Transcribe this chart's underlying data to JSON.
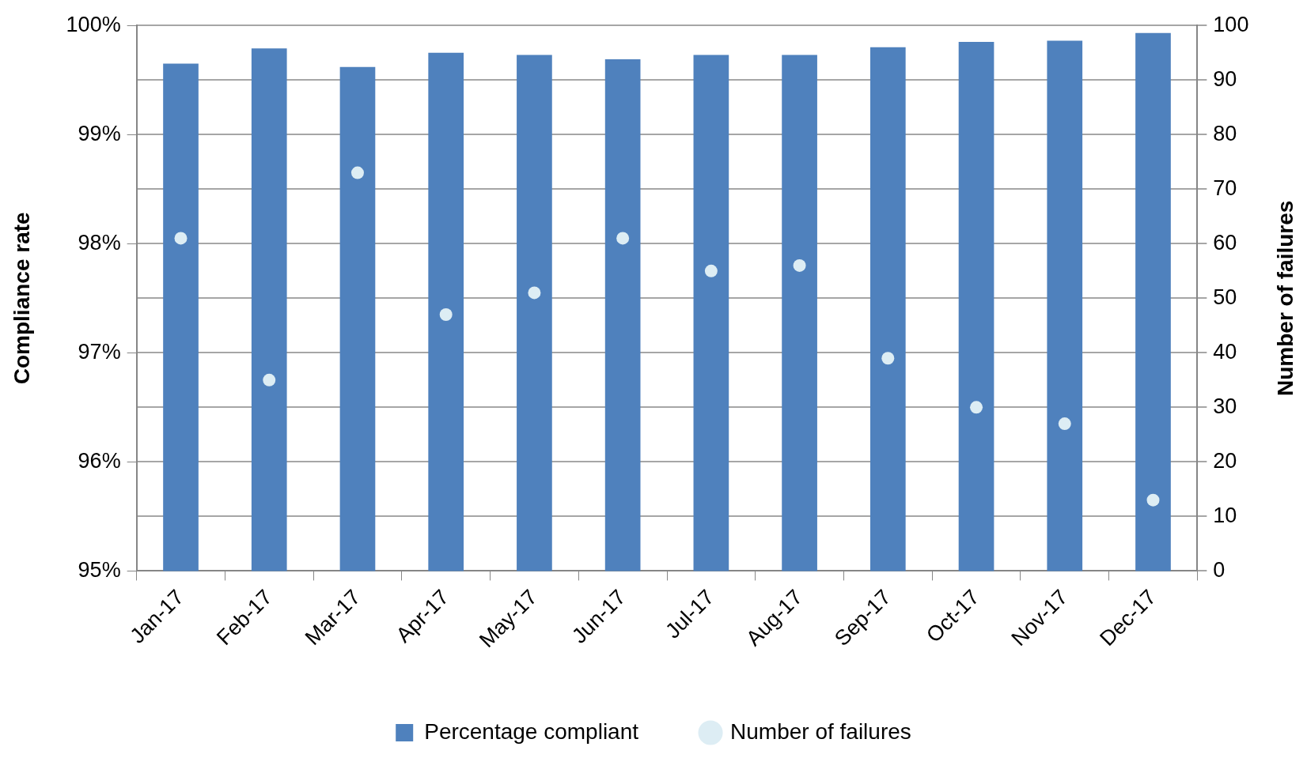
{
  "chart_data": {
    "type": "bar",
    "ylabel": "Compliance rate",
    "y2label": "Number of failures",
    "categories": [
      "Jan-17",
      "Feb-17",
      "Mar-17",
      "Apr-17",
      "May-17",
      "Jun-17",
      "Jul-17",
      "Aug-17",
      "Sep-17",
      "Oct-17",
      "Nov-17",
      "Dec-17"
    ],
    "series": [
      {
        "name": "Percentage compliant",
        "color": "#4f81bd",
        "values": [
          99.65,
          99.79,
          99.62,
          99.75,
          99.73,
          99.69,
          99.73,
          99.73,
          99.8,
          99.85,
          99.86,
          99.93
        ]
      },
      {
        "name": "Number of failures",
        "type": "scatter",
        "axis": "y2",
        "color": "#ddedf4",
        "marker": "circle",
        "values": [
          61,
          35,
          73,
          47,
          51,
          61,
          55,
          56,
          39,
          30,
          27,
          13
        ]
      }
    ],
    "ylim": [
      95,
      100
    ],
    "yticks": [
      {
        "value": 95,
        "label": "95%"
      },
      {
        "value": 96,
        "label": "96%"
      },
      {
        "value": 97,
        "label": "97%"
      },
      {
        "value": 98,
        "label": "98%"
      },
      {
        "value": 99,
        "label": "99%"
      },
      {
        "value": 100,
        "label": "100%"
      }
    ],
    "y2lim": [
      0,
      100
    ],
    "y2ticks": [
      0,
      10,
      20,
      30,
      40,
      50,
      60,
      70,
      80,
      90,
      100
    ],
    "grid": true,
    "legend": "bottom"
  }
}
